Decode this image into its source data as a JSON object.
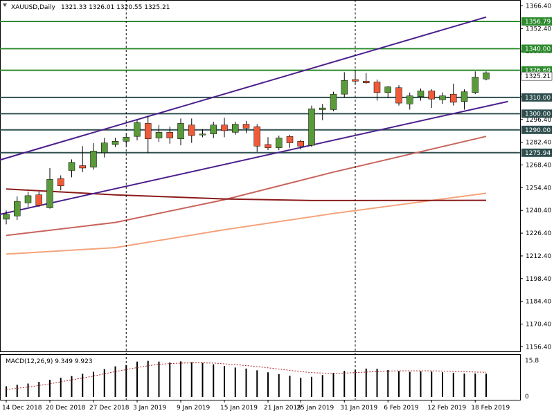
{
  "header": {
    "symbol": "XAUUSD,Daily",
    "ohlc": "1321.33 1326.01 1320.55 1325.21"
  },
  "macd_panel": {
    "label": "MACD(12,26,9) 9.349 9.923",
    "scale_top": "15.8",
    "scale_zero": "0"
  },
  "colors": {
    "bull": "#5a9a3a",
    "bear": "#ee5b3a",
    "level_green": "#2e8b2e",
    "level_dark": "#2f4f4f",
    "channel": "#4b1e8c",
    "ma_slow": "#8b1a1a",
    "ma_mid": "#c9645c",
    "ma_fast": "#f4a37a"
  },
  "chart_data": {
    "type": "candlestick",
    "y_axis_ticks": [
      "1366.40",
      "1352.40",
      "1338.40",
      "1324.40",
      "1310.40",
      "1296.40",
      "1282.40",
      "1268.40",
      "1254.40",
      "1240.40",
      "1226.40",
      "1212.40",
      "1198.40",
      "1184.40",
      "1170.40",
      "1156.40"
    ],
    "ylim": [
      1153.6,
      1370.0
    ],
    "x_axis_labels": [
      "14 Dec 2018",
      "20 Dec 2018",
      "27 Dec 2018",
      "3 Jan 2019",
      "9 Jan 2019",
      "15 Jan 2019",
      "21 Jan 2019",
      "25 Jan 2019",
      "31 Jan 2019",
      "6 Feb 2019",
      "12 Feb 2019",
      "18 Feb 2019"
    ],
    "levels": [
      {
        "label": "1356.79",
        "value": 1356.79,
        "kind": "green"
      },
      {
        "label": "1340.00",
        "value": 1340.0,
        "kind": "green"
      },
      {
        "label": "1326.69",
        "value": 1326.69,
        "kind": "green"
      },
      {
        "label": "1310.00",
        "value": 1310.0,
        "kind": "dark"
      },
      {
        "label": "1300.00",
        "value": 1300.0,
        "kind": "dark"
      },
      {
        "label": "1290.00",
        "value": 1290.0,
        "kind": "dark"
      },
      {
        "label": "1275.94",
        "value": 1275.94,
        "kind": "dark"
      }
    ],
    "last_price": {
      "label": "1325.21",
      "value": 1325.21
    },
    "candles": [
      {
        "o": 1235.0,
        "h": 1240.4,
        "l": 1231.8,
        "c": 1238.0
      },
      {
        "o": 1237.0,
        "h": 1249.0,
        "l": 1234.5,
        "c": 1246.0
      },
      {
        "o": 1245.0,
        "h": 1252.0,
        "l": 1242.5,
        "c": 1249.5
      },
      {
        "o": 1250.0,
        "h": 1252.0,
        "l": 1242.5,
        "c": 1243.5
      },
      {
        "o": 1242.0,
        "h": 1266.5,
        "l": 1241.5,
        "c": 1259.5
      },
      {
        "o": 1260.0,
        "h": 1262.0,
        "l": 1252.8,
        "c": 1255.5
      },
      {
        "o": 1265.0,
        "h": 1271.8,
        "l": 1260.8,
        "c": 1270.0
      },
      {
        "o": 1268.0,
        "h": 1280.0,
        "l": 1264.0,
        "c": 1266.5
      },
      {
        "o": 1267.0,
        "h": 1281.8,
        "l": 1265.5,
        "c": 1277.0
      },
      {
        "o": 1276.0,
        "h": 1285.0,
        "l": 1273.0,
        "c": 1282.0
      },
      {
        "o": 1281.0,
        "h": 1285.0,
        "l": 1279.5,
        "c": 1283.0
      },
      {
        "o": 1283.0,
        "h": 1287.0,
        "l": 1280.5,
        "c": 1285.5
      },
      {
        "o": 1286.0,
        "h": 1296.0,
        "l": 1283.5,
        "c": 1294.5
      },
      {
        "o": 1294.0,
        "h": 1298.5,
        "l": 1275.8,
        "c": 1284.5
      },
      {
        "o": 1285.0,
        "h": 1293.0,
        "l": 1282.5,
        "c": 1288.5
      },
      {
        "o": 1288.5,
        "h": 1292.0,
        "l": 1281.5,
        "c": 1285.0
      },
      {
        "o": 1284.5,
        "h": 1297.0,
        "l": 1280.5,
        "c": 1294.0
      },
      {
        "o": 1293.0,
        "h": 1297.0,
        "l": 1282.0,
        "c": 1286.5
      },
      {
        "o": 1287.0,
        "h": 1290.5,
        "l": 1285.5,
        "c": 1287.5
      },
      {
        "o": 1287.5,
        "h": 1295.0,
        "l": 1285.0,
        "c": 1293.0
      },
      {
        "o": 1293.0,
        "h": 1297.5,
        "l": 1285.5,
        "c": 1289.5
      },
      {
        "o": 1288.5,
        "h": 1295.0,
        "l": 1287.0,
        "c": 1293.5
      },
      {
        "o": 1293.5,
        "h": 1295.5,
        "l": 1288.0,
        "c": 1291.0
      },
      {
        "o": 1292.0,
        "h": 1293.5,
        "l": 1276.5,
        "c": 1280.0
      },
      {
        "o": 1281.0,
        "h": 1285.5,
        "l": 1277.5,
        "c": 1279.0
      },
      {
        "o": 1279.0,
        "h": 1286.5,
        "l": 1277.5,
        "c": 1285.0
      },
      {
        "o": 1286.0,
        "h": 1287.0,
        "l": 1279.0,
        "c": 1282.0
      },
      {
        "o": 1283.0,
        "h": 1284.0,
        "l": 1278.0,
        "c": 1280.0
      },
      {
        "o": 1280.5,
        "h": 1305.0,
        "l": 1279.5,
        "c": 1303.0
      },
      {
        "o": 1302.5,
        "h": 1306.0,
        "l": 1296.0,
        "c": 1303.5
      },
      {
        "o": 1302.5,
        "h": 1313.5,
        "l": 1301.5,
        "c": 1312.0
      },
      {
        "o": 1312.0,
        "h": 1325.5,
        "l": 1310.0,
        "c": 1320.5
      },
      {
        "o": 1321.0,
        "h": 1327.0,
        "l": 1318.0,
        "c": 1320.0
      },
      {
        "o": 1320.0,
        "h": 1325.0,
        "l": 1318.5,
        "c": 1319.0
      },
      {
        "o": 1319.5,
        "h": 1321.0,
        "l": 1308.0,
        "c": 1313.0
      },
      {
        "o": 1313.0,
        "h": 1317.0,
        "l": 1309.5,
        "c": 1316.5
      },
      {
        "o": 1316.0,
        "h": 1317.5,
        "l": 1305.0,
        "c": 1306.5
      },
      {
        "o": 1306.0,
        "h": 1313.0,
        "l": 1302.5,
        "c": 1311.0
      },
      {
        "o": 1310.5,
        "h": 1315.5,
        "l": 1308.0,
        "c": 1314.0
      },
      {
        "o": 1314.0,
        "h": 1315.0,
        "l": 1303.5,
        "c": 1309.0
      },
      {
        "o": 1308.5,
        "h": 1313.0,
        "l": 1306.0,
        "c": 1311.0
      },
      {
        "o": 1312.0,
        "h": 1318.5,
        "l": 1305.0,
        "c": 1307.0
      },
      {
        "o": 1307.5,
        "h": 1315.0,
        "l": 1302.5,
        "c": 1313.5
      },
      {
        "o": 1313.0,
        "h": 1326.0,
        "l": 1312.0,
        "c": 1322.5
      },
      {
        "o": 1321.33,
        "h": 1326.01,
        "l": 1320.55,
        "c": 1325.21
      }
    ],
    "macd_histogram": [
      4.3,
      4.9,
      5.4,
      6.1,
      6.9,
      7.7,
      8.4,
      9.3,
      10.1,
      11.2,
      12.3,
      12.8,
      14.2,
      14.5,
      14.2,
      13.8,
      14.3,
      13.9,
      13.7,
      13.1,
      12.4,
      11.8,
      11.4,
      10.7,
      9.9,
      9.2,
      8.5,
      7.7,
      8.1,
      8.8,
      9.7,
      10.5,
      10.9,
      11.4,
      11.3,
      10.8,
      10.4,
      10.1,
      10.3,
      10.2,
      9.9,
      9.7,
      9.4,
      9.4,
      9.349
    ],
    "macd_signal": [
      3.0,
      3.5,
      4.0,
      4.6,
      5.3,
      6.1,
      6.9,
      7.6,
      8.4,
      9.3,
      10.2,
      11.0,
      11.8,
      12.5,
      13.1,
      13.4,
      13.6,
      13.7,
      13.7,
      13.6,
      13.3,
      13.0,
      12.6,
      12.2,
      11.7,
      11.2,
      10.7,
      10.2,
      9.8,
      9.6,
      9.5,
      9.6,
      9.8,
      10.0,
      10.2,
      10.4,
      10.5,
      10.5,
      10.5,
      10.5,
      10.4,
      10.3,
      10.2,
      10.0,
      9.923
    ],
    "macd_ylim": [
      0,
      15.8
    ],
    "channel": [
      {
        "from": [
          0,
          1271.5
        ],
        "to": [
          44,
          1359.5
        ]
      },
      {
        "from": [
          0,
          1238.0
        ],
        "to": [
          46,
          1307.5
        ]
      }
    ],
    "ma_slow": [
      [
        0,
        1253.6
      ],
      [
        10,
        1250.0
      ],
      [
        20,
        1247.5
      ],
      [
        28,
        1246.5
      ],
      [
        44,
        1246.6
      ]
    ],
    "ma_mid": [
      [
        0,
        1225.0
      ],
      [
        10,
        1233.0
      ],
      [
        20,
        1247.0
      ],
      [
        30,
        1264.0
      ],
      [
        44,
        1286.0
      ]
    ],
    "ma_fast": [
      [
        0,
        1213.5
      ],
      [
        10,
        1217.5
      ],
      [
        20,
        1228.5
      ],
      [
        30,
        1238.5
      ],
      [
        44,
        1251.0
      ]
    ],
    "vertical_separators": [
      11,
      32
    ]
  }
}
